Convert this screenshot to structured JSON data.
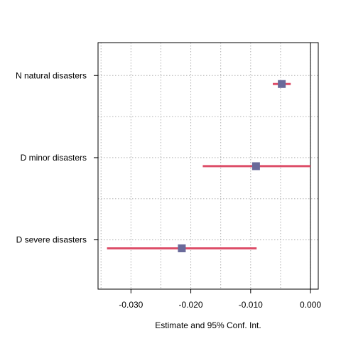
{
  "chart_data": {
    "type": "scatter",
    "subtype": "coefficient-plot",
    "xlabel": "Estimate and 95% Conf. Int.",
    "xlim": [
      -0.0355,
      0.0013
    ],
    "x_ticks": [
      -0.03,
      -0.02,
      -0.01,
      0.0
    ],
    "x_tick_labels": [
      "-0.030",
      "-0.020",
      "-0.010",
      "0.000"
    ],
    "x_gridlines": [
      -0.035,
      -0.03,
      -0.025,
      -0.02,
      -0.015,
      -0.01,
      -0.005,
      0.0
    ],
    "y_gridlines_between_rows": true,
    "reference_line": 0.0,
    "grid": true,
    "grid_style": "dotted",
    "categories": [
      "N natural disasters",
      "D minor disasters",
      "D severe disasters"
    ],
    "estimates": [
      -0.0048,
      -0.0091,
      -0.0215
    ],
    "ci_lower": [
      -0.0063,
      -0.018,
      -0.034
    ],
    "ci_upper": [
      -0.0033,
      0.0,
      -0.009
    ],
    "point_color": "#6a6a9a",
    "ci_color": "#dd4d68",
    "reference_line_color": "#000000"
  }
}
